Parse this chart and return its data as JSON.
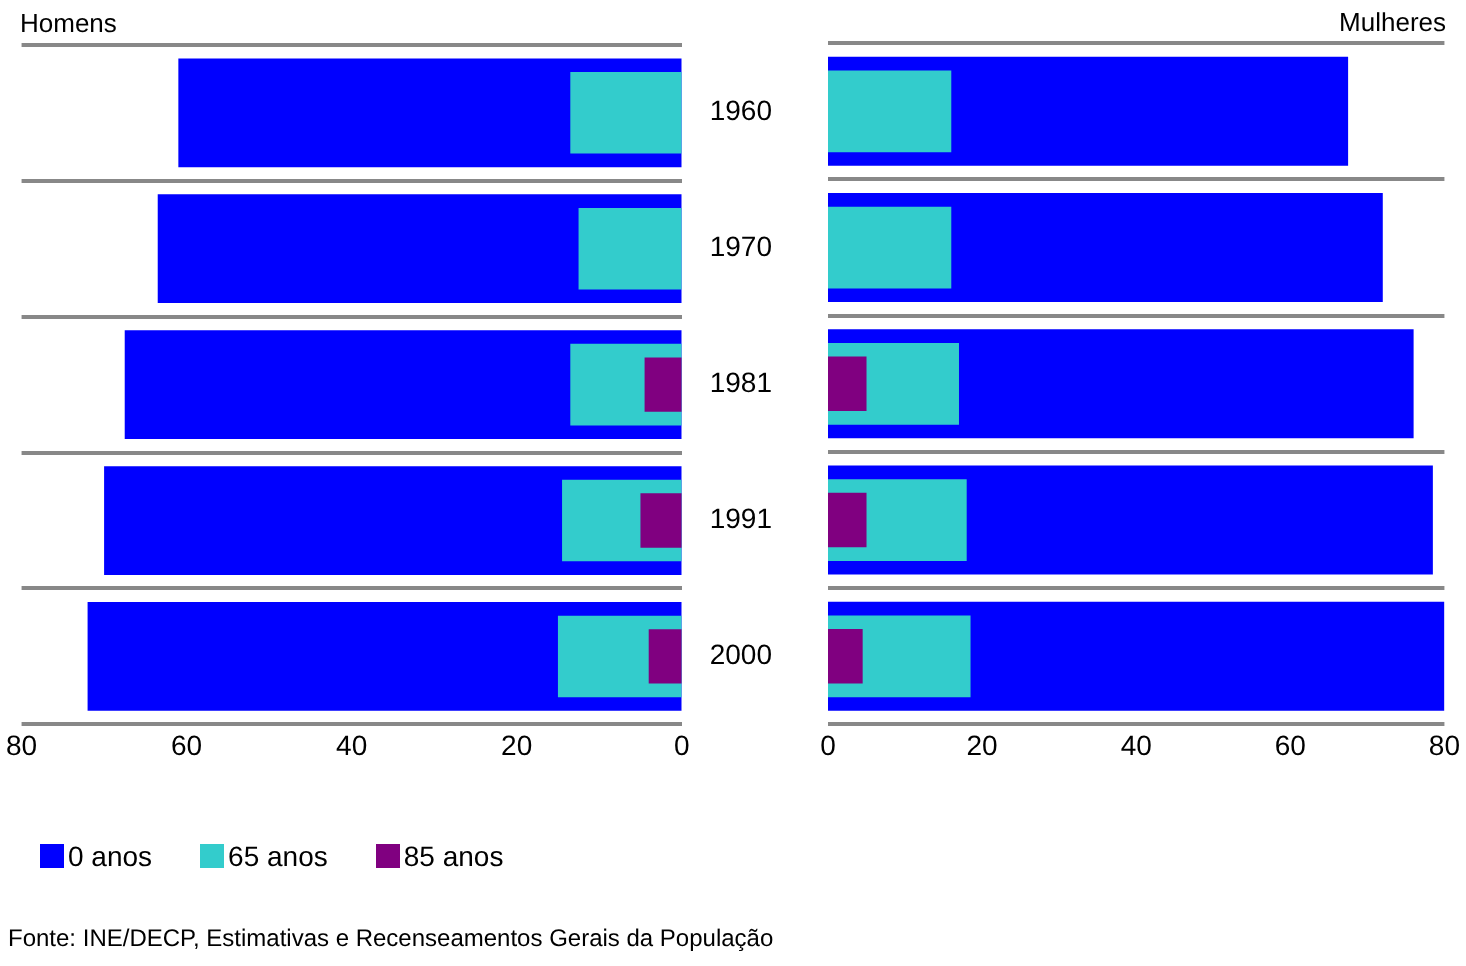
{
  "chart_data": [
    {
      "type": "bar",
      "orientation": "horizontal",
      "title": "Homens",
      "categories": [
        "1960",
        "1970",
        "1981",
        "1991",
        "2000"
      ],
      "series": [
        {
          "name": "0 anos",
          "color": "#0000ff",
          "values": [
            61,
            63.5,
            67.5,
            70,
            72
          ]
        },
        {
          "name": "65 anos",
          "color": "#33cccc",
          "values": [
            13.5,
            12.5,
            13.5,
            14.5,
            15
          ]
        },
        {
          "name": "85 anos",
          "color": "#800080",
          "values": [
            null,
            null,
            4.5,
            5,
            4
          ]
        }
      ],
      "xlim": [
        80,
        0
      ],
      "xticks": [
        80,
        60,
        40,
        20,
        0
      ],
      "grid": "y",
      "legend": "bottom",
      "annotations": [
        "Fonte: INE/DECP, Estimativas e Recenseamentos Gerais da População"
      ]
    },
    {
      "type": "bar",
      "orientation": "horizontal",
      "title": "Mulheres",
      "categories": [
        "1960",
        "1970",
        "1981",
        "1991",
        "2000"
      ],
      "series": [
        {
          "color": "#0000ff",
          "values": [
            67.5,
            72,
            76,
            78.5,
            80
          ]
        },
        {
          "color": "#33cccc",
          "values": [
            16,
            16,
            17,
            18,
            18.5
          ]
        },
        {
          "color": "#800080",
          "values": [
            null,
            null,
            5,
            5,
            4.5
          ]
        }
      ],
      "xlim": [
        0,
        80
      ],
      "xticks": [
        0,
        20,
        40,
        60,
        80
      ],
      "grid": "y",
      "tick_labels": "x"
    }
  ]
}
